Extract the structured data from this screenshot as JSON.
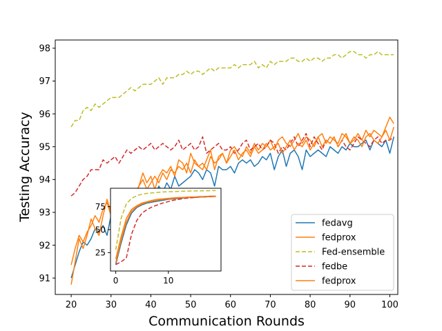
{
  "chart_data": {
    "type": "line",
    "xlabel": "Communication Rounds",
    "ylabel": "Testing Accuracy",
    "xlim": [
      16,
      102
    ],
    "ylim": [
      90.5,
      98.25
    ],
    "xticks": [
      20,
      30,
      40,
      50,
      60,
      70,
      80,
      90,
      100
    ],
    "yticks": [
      91,
      92,
      93,
      94,
      95,
      96,
      97,
      98
    ],
    "x_start": 20,
    "legend": {
      "location": "lower right",
      "entries": [
        "fedavg",
        "fedprox",
        "Fed-ensemble",
        "fedbe",
        "fedprox"
      ]
    },
    "colors": {
      "fedavg": "#1f77b4",
      "fedprox": "#ff7f0e",
      "ensemble": "#bcbd22",
      "fedbe": "#d62728"
    },
    "series": [
      {
        "name": "fedavg",
        "style": "solid",
        "color_key": "fedavg",
        "values": [
          91.0,
          91.4,
          91.8,
          92.1,
          92.0,
          92.2,
          92.5,
          92.4,
          92.6,
          92.3,
          92.9,
          92.7,
          93.1,
          92.9,
          93.3,
          93.1,
          93.5,
          93.3,
          93.7,
          93.4,
          93.6,
          93.5,
          93.8,
          93.6,
          93.9,
          93.7,
          94.1,
          93.8,
          93.9,
          94.0,
          94.1,
          94.3,
          94.2,
          94.0,
          94.3,
          94.2,
          93.8,
          94.4,
          94.3,
          94.3,
          94.4,
          94.2,
          94.5,
          94.6,
          94.5,
          94.6,
          94.4,
          94.5,
          94.7,
          94.6,
          94.8,
          94.3,
          94.7,
          94.9,
          94.4,
          94.8,
          94.9,
          94.7,
          94.3,
          94.9,
          94.7,
          94.8,
          94.9,
          94.8,
          94.7,
          95.0,
          94.9,
          94.8,
          95.0,
          94.9,
          95.1,
          95.0,
          95.0,
          95.1,
          95.2,
          94.9,
          95.2,
          95.1,
          95.0,
          95.2,
          94.8,
          95.3
        ]
      },
      {
        "name": "fedprox",
        "style": "solid",
        "color_key": "fedprox",
        "values": [
          90.8,
          91.5,
          92.2,
          91.9,
          92.3,
          92.8,
          92.5,
          92.3,
          92.9,
          93.4,
          93.0,
          92.8,
          93.3,
          93.1,
          93.5,
          92.9,
          93.4,
          93.8,
          94.2,
          93.9,
          94.1,
          93.7,
          94.1,
          94.3,
          94.2,
          94.4,
          94.1,
          94.6,
          94.5,
          94.2,
          94.8,
          94.5,
          94.4,
          94.3,
          94.6,
          94.9,
          94.3,
          94.7,
          94.8,
          94.5,
          94.9,
          95.0,
          94.8,
          94.7,
          95.0,
          94.8,
          95.1,
          94.9,
          95.1,
          95.0,
          95.2,
          94.9,
          95.2,
          95.3,
          95.1,
          95.0,
          95.2,
          95.4,
          95.1,
          95.3,
          95.2,
          95.0,
          95.3,
          95.4,
          95.1,
          95.3,
          95.2,
          95.1,
          95.4,
          95.3,
          95.1,
          95.2,
          95.4,
          95.2,
          95.5,
          95.3,
          95.5,
          95.4,
          95.3,
          95.6,
          95.9,
          95.7
        ]
      },
      {
        "name": "Fed-ensemble",
        "style": "dashed",
        "color_key": "ensemble",
        "values": [
          95.6,
          95.8,
          95.8,
          96.1,
          96.2,
          96.1,
          96.3,
          96.2,
          96.3,
          96.4,
          96.5,
          96.5,
          96.5,
          96.6,
          96.7,
          96.8,
          96.7,
          96.8,
          96.9,
          96.9,
          96.9,
          97.0,
          97.1,
          96.9,
          97.1,
          97.1,
          97.1,
          97.2,
          97.2,
          97.3,
          97.2,
          97.3,
          97.3,
          97.2,
          97.3,
          97.4,
          97.3,
          97.4,
          97.4,
          97.4,
          97.4,
          97.5,
          97.4,
          97.5,
          97.5,
          97.5,
          97.6,
          97.4,
          97.5,
          97.4,
          97.6,
          97.5,
          97.6,
          97.6,
          97.6,
          97.7,
          97.7,
          97.6,
          97.6,
          97.7,
          97.6,
          97.7,
          97.7,
          97.6,
          97.7,
          97.7,
          97.8,
          97.8,
          97.7,
          97.8,
          97.9,
          97.9,
          97.8,
          97.8,
          97.7,
          97.8,
          97.8,
          97.9,
          97.8,
          97.8,
          97.8,
          97.8
        ]
      },
      {
        "name": "fedbe",
        "style": "dashed",
        "color_key": "fedbe",
        "values": [
          93.5,
          93.6,
          93.8,
          94.0,
          94.1,
          94.3,
          94.3,
          94.3,
          94.6,
          94.5,
          94.6,
          94.7,
          94.5,
          94.7,
          94.9,
          94.8,
          94.9,
          95.0,
          94.9,
          95.0,
          95.1,
          94.9,
          95.0,
          95.1,
          95.0,
          94.9,
          95.0,
          95.2,
          94.9,
          95.0,
          95.1,
          94.9,
          95.0,
          95.3,
          94.8,
          94.9,
          95.0,
          95.1,
          94.9,
          94.9,
          95.0,
          94.8,
          94.9,
          95.1,
          95.2,
          94.9,
          95.0,
          95.1,
          94.9,
          95.0,
          95.2,
          95.1,
          94.8,
          95.0,
          94.9,
          95.1,
          95.3,
          95.0,
          95.2,
          95.4,
          95.0,
          95.3,
          95.1,
          94.9,
          95.2,
          95.1,
          95.3,
          95.0,
          95.2,
          95.0,
          94.9,
          95.1,
          95.3,
          95.2,
          95.1,
          95.0,
          95.2,
          95.3,
          95.1,
          95.2,
          95.2,
          95.3
        ]
      },
      {
        "name": "fedprox",
        "style": "solid",
        "color_key": "fedprox",
        "values": [
          91.4,
          91.9,
          92.3,
          92.1,
          92.4,
          92.6,
          92.9,
          92.7,
          93.1,
          93.3,
          92.9,
          93.2,
          93.4,
          93.2,
          93.6,
          93.4,
          93.6,
          93.8,
          94.0,
          93.7,
          93.9,
          94.1,
          93.9,
          94.2,
          94.0,
          94.3,
          94.2,
          94.4,
          94.3,
          94.5,
          94.2,
          94.6,
          94.4,
          94.5,
          94.3,
          94.7,
          94.5,
          94.6,
          94.8,
          94.5,
          94.7,
          94.9,
          94.6,
          94.8,
          94.9,
          94.7,
          95.0,
          94.8,
          94.9,
          95.1,
          94.9,
          95.0,
          95.1,
          94.8,
          95.0,
          95.2,
          94.9,
          95.1,
          95.0,
          95.2,
          94.9,
          95.1,
          95.3,
          95.0,
          95.2,
          95.1,
          95.3,
          95.0,
          95.2,
          95.4,
          95.1,
          95.3,
          95.2,
          95.0,
          95.3,
          95.4,
          95.2,
          95.1,
          95.3,
          95.5,
          95.2,
          95.6
        ]
      }
    ],
    "inset": {
      "xlim": [
        -1,
        20
      ],
      "ylim": [
        5,
        95
      ],
      "xticks": [
        0,
        10
      ],
      "yticks": [
        25,
        50,
        75
      ],
      "x": [
        0,
        1,
        2,
        3,
        4,
        5,
        6,
        7,
        8,
        9,
        10,
        11,
        12,
        13,
        14,
        15,
        16,
        17,
        18,
        19
      ],
      "series": [
        {
          "name": "fedavg",
          "style": "solid",
          "color_key": "fedavg",
          "values": [
            12,
            35,
            55,
            68,
            74,
            77,
            79,
            80,
            81,
            82,
            83,
            83.5,
            84,
            84.5,
            85,
            85,
            85.5,
            85.5,
            86,
            86
          ]
        },
        {
          "name": "fedprox",
          "style": "solid",
          "color_key": "fedprox",
          "values": [
            14,
            38,
            58,
            70,
            75,
            78,
            80,
            81,
            82,
            83,
            83.5,
            84,
            84.5,
            85,
            85,
            85.5,
            85.5,
            86,
            86,
            86
          ]
        },
        {
          "name": "Fed-ensemble",
          "style": "dashed",
          "color_key": "ensemble",
          "values": [
            28,
            62,
            78,
            84,
            87,
            88.5,
            89.5,
            90,
            90.5,
            91,
            91.2,
            91.4,
            91.6,
            91.8,
            92,
            92.1,
            92.2,
            92.3,
            92.4,
            92.5
          ]
        },
        {
          "name": "fedbe",
          "style": "dashed",
          "color_key": "fedbe",
          "values": [
            12,
            15,
            19,
            45,
            60,
            68,
            72,
            75,
            77,
            79,
            80.5,
            82,
            83,
            84,
            84.5,
            85,
            85.5,
            86,
            86,
            86.5
          ]
        },
        {
          "name": "fedprox",
          "style": "solid",
          "color_key": "fedprox",
          "values": [
            18,
            42,
            62,
            72,
            76,
            79,
            80.5,
            82,
            83,
            83.5,
            84,
            84.5,
            85,
            85,
            85.5,
            85.5,
            86,
            86,
            86.5,
            86.5
          ]
        }
      ]
    }
  }
}
